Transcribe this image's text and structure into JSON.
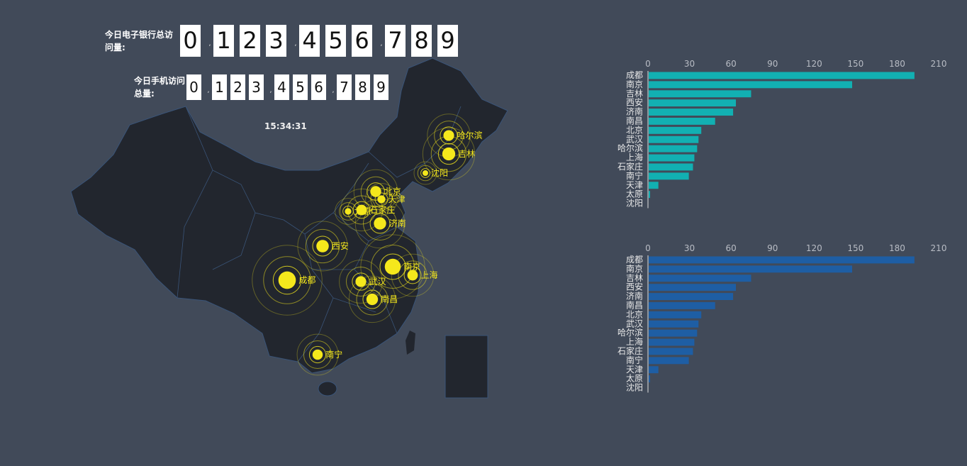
{
  "counters": {
    "ebank": {
      "label": "今日电子银行总访问量:",
      "digits": [
        "0",
        "1",
        "2",
        "3",
        "4",
        "5",
        "6",
        "7",
        "8",
        "9"
      ]
    },
    "mobile": {
      "label": "今日手机访问总量:",
      "digits": [
        "0",
        "1",
        "2",
        "3",
        "4",
        "5",
        "6",
        "7",
        "8",
        "9"
      ]
    },
    "separator": ","
  },
  "clock": "15:34:31",
  "colors": {
    "background": "#414a59",
    "map_fill": "#22262e",
    "map_border": "#3a5478",
    "marker": "#f5e81c",
    "bar1": "#12b0b2",
    "bar2": "#1e5ea4"
  },
  "map": {
    "cities": [
      {
        "name": "成都",
        "value": 192
      },
      {
        "name": "南京",
        "value": 147
      },
      {
        "name": "吉林",
        "value": 74
      },
      {
        "name": "西安",
        "value": 63
      },
      {
        "name": "济南",
        "value": 61
      },
      {
        "name": "南昌",
        "value": 48
      },
      {
        "name": "北京",
        "value": 38
      },
      {
        "name": "武汉",
        "value": 36
      },
      {
        "name": "哈尔滨",
        "value": 35
      },
      {
        "name": "上海",
        "value": 33
      },
      {
        "name": "石家庄",
        "value": 32
      },
      {
        "name": "南宁",
        "value": 29
      },
      {
        "name": "天津",
        "value": 7
      },
      {
        "name": "太原",
        "value": 1
      },
      {
        "name": "沈阳",
        "value": 0
      }
    ]
  },
  "chart_data": [
    {
      "type": "bar",
      "orientation": "horizontal",
      "categories": [
        "成都",
        "南京",
        "吉林",
        "西安",
        "济南",
        "南昌",
        "北京",
        "武汉",
        "哈尔滨",
        "上海",
        "石家庄",
        "南宁",
        "天津",
        "太原",
        "沈阳"
      ],
      "values": [
        192,
        147,
        74,
        63,
        61,
        48,
        38,
        36,
        35,
        33,
        32,
        29,
        7,
        1,
        0
      ],
      "xticks": [
        "0",
        "30",
        "60",
        "90",
        "120",
        "150",
        "180",
        "210"
      ],
      "xlim": [
        0,
        210
      ],
      "xaxis_position": "top",
      "grid": false,
      "color": "#12b0b2"
    },
    {
      "type": "bar",
      "orientation": "horizontal",
      "categories": [
        "成都",
        "南京",
        "吉林",
        "西安",
        "济南",
        "南昌",
        "北京",
        "武汉",
        "哈尔滨",
        "上海",
        "石家庄",
        "南宁",
        "天津",
        "太原",
        "沈阳"
      ],
      "values": [
        192,
        147,
        74,
        63,
        61,
        48,
        38,
        36,
        35,
        33,
        32,
        29,
        7,
        1,
        0
      ],
      "xticks": [
        "0",
        "30",
        "60",
        "90",
        "120",
        "150",
        "180",
        "210"
      ],
      "xlim": [
        0,
        210
      ],
      "xaxis_position": "top",
      "grid": false,
      "color": "#1e5ea4"
    }
  ]
}
